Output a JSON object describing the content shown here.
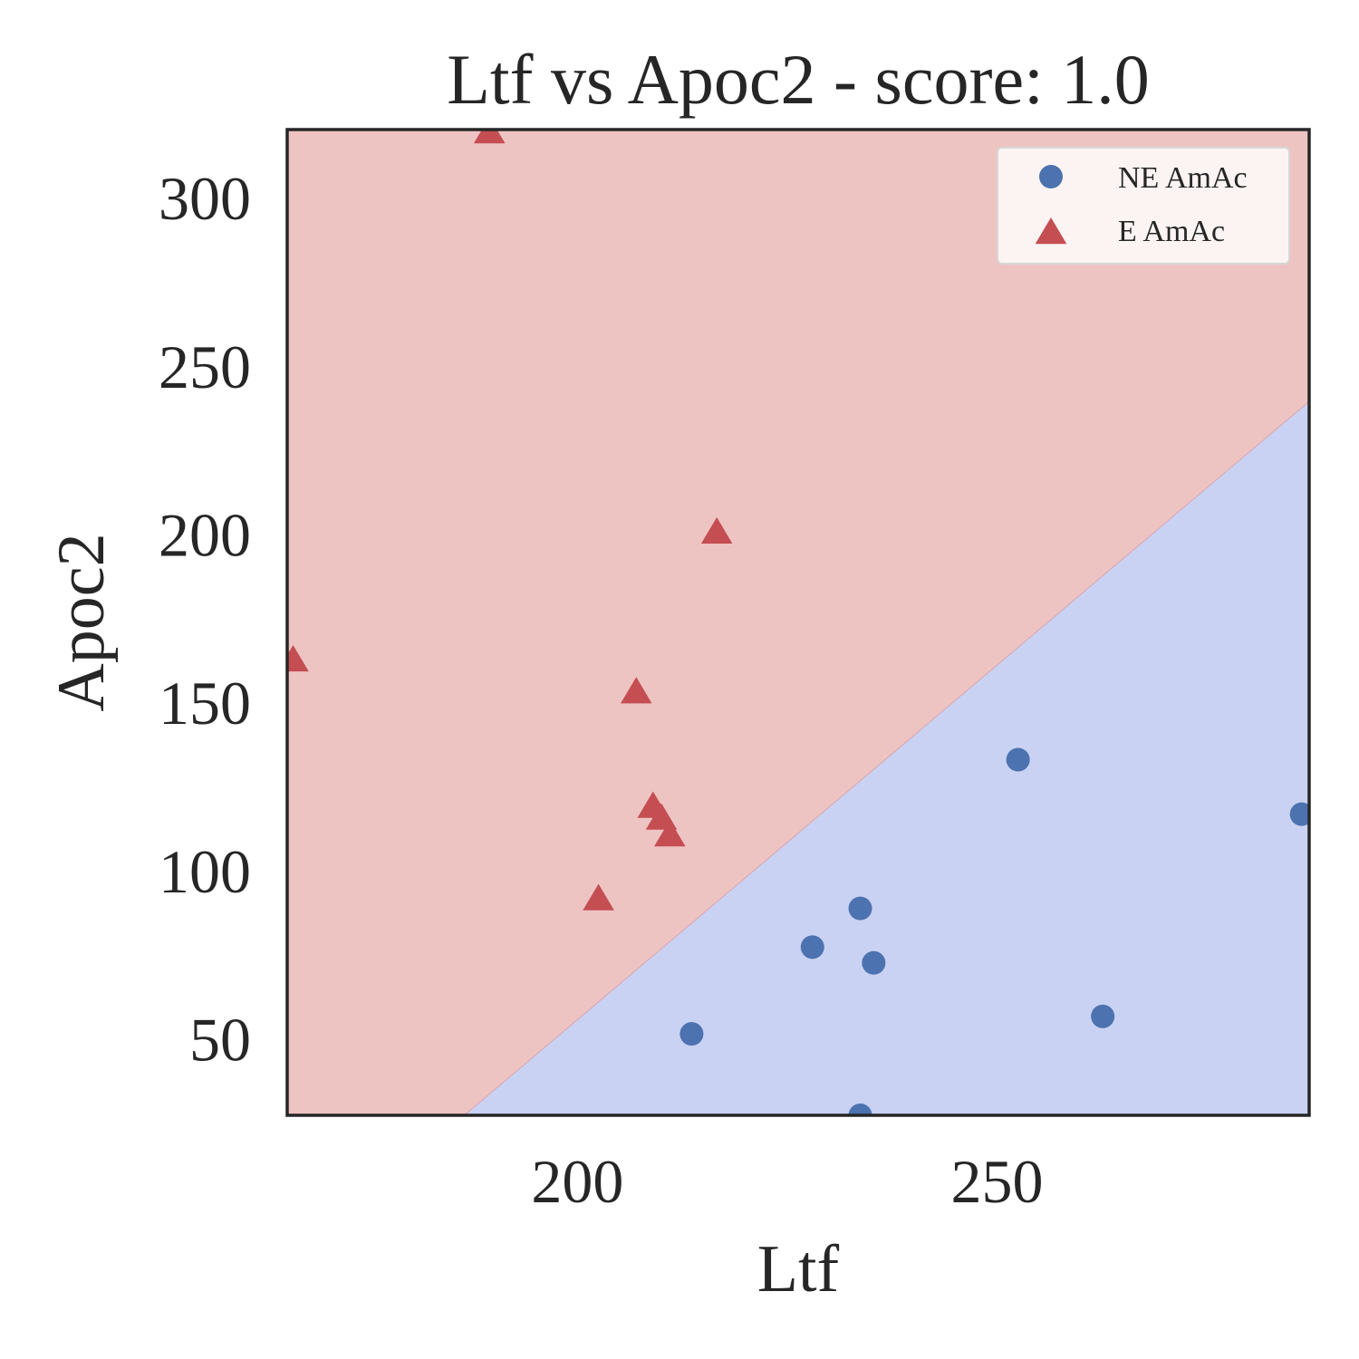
{
  "chart_data": {
    "type": "scatter",
    "title": "Ltf vs Apoc2 - score: 1.0",
    "xlabel": "Ltf",
    "ylabel": "Apoc2",
    "xlim": [
      165.4,
      287.2
    ],
    "ylim": [
      27.5,
      320.5
    ],
    "xticks": [
      200,
      250
    ],
    "yticks": [
      50,
      100,
      150,
      200,
      250,
      300
    ],
    "grid": false,
    "legend": "top-right",
    "decision_regions": {
      "boundary": [
        [
          186.5,
          27.5
        ],
        [
          287.2,
          239.7
        ]
      ],
      "upper_left_class": "E AmAc",
      "lower_right_class": "NE AmAc",
      "upper_left_color": "#eec4c3",
      "lower_right_color": "#c9d2f2"
    },
    "series": [
      {
        "name": "NE AmAc",
        "marker": "circle",
        "color": "#4c72b0",
        "points": [
          [
            252.5,
            133.2
          ],
          [
            286.3,
            117.0
          ],
          [
            233.7,
            89.0
          ],
          [
            228.0,
            77.5
          ],
          [
            235.3,
            72.8
          ],
          [
            262.6,
            56.9
          ],
          [
            213.6,
            51.7
          ],
          [
            233.7,
            27.5
          ]
        ]
      },
      {
        "name": "E AmAc",
        "marker": "triangle",
        "color": "#c44e52",
        "points": [
          [
            189.5,
            320.5
          ],
          [
            216.6,
            201.5
          ],
          [
            166.1,
            163.5
          ],
          [
            207.0,
            154.0
          ],
          [
            209.0,
            120.0
          ],
          [
            210.0,
            116.5
          ],
          [
            211.0,
            111.5
          ],
          [
            202.5,
            92.5
          ]
        ]
      }
    ]
  }
}
